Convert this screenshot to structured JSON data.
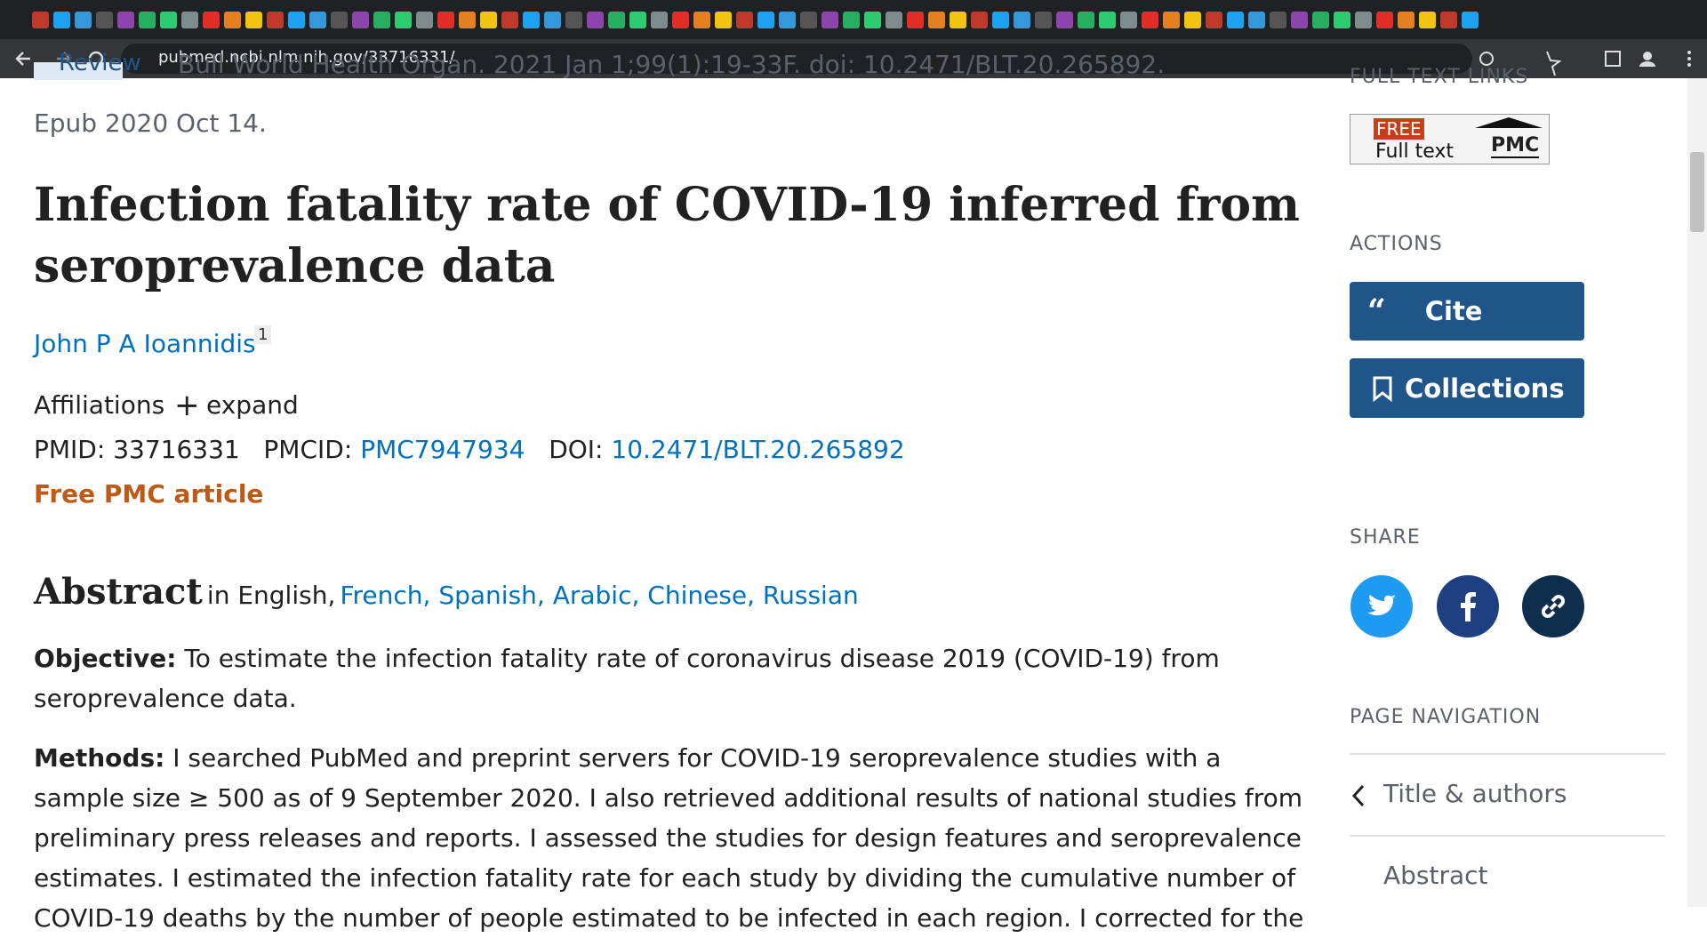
{
  "browser": {
    "url": "pubmed.ncbi.nlm.nih.gov/33716331/"
  },
  "article": {
    "badge": "Review",
    "citation": "Bull World Health Organ. 2021 Jan 1;99(1):19-33F. doi: 10.2471/BLT.20.265892.",
    "epub": "Epub 2020 Oct 14.",
    "title_lines": [
      "Infection fatality rate of COVID-19 inferred from",
      "seroprevalence data"
    ],
    "author": "John P A Ioannidis",
    "author_sup": "1",
    "affiliations": "Affiliations",
    "expand": "expand",
    "ids": {
      "pmid_label": "PMID:",
      "pmid": "33716331",
      "pmcid_label": "PMCID:",
      "pmcid": "PMC7947934",
      "doi_label": "DOI:",
      "doi": "10.2471/BLT.20.265892"
    },
    "free_pmc": "Free PMC article",
    "abstract": {
      "heading": "Abstract",
      "in_english": "in English,",
      "languages": "French, Spanish, Arabic, Chinese, Russian",
      "objective_label": "Objective:",
      "objective_lines": [
        "To estimate the infection fatality rate of coronavirus disease 2019 (COVID-19) from",
        "seroprevalence data."
      ],
      "methods_label": "Methods:",
      "methods_lines": [
        "I searched PubMed and preprint servers for COVID-19 seroprevalence studies with a",
        "sample size ≥ 500 as of 9 September 2020. I also retrieved additional results of national studies from",
        "preliminary press releases and reports. I assessed the studies for design features and seroprevalence",
        "estimates. I estimated the infection fatality rate for each study by dividing the cumulative number of",
        "COVID-19 deaths by the number of people estimated to be infected in each region. I corrected for the"
      ]
    }
  },
  "sidebar": {
    "full_text_links": "FULL TEXT LINKS",
    "free": "FREE",
    "full_text": "Full text",
    "pmc": "PMC",
    "actions": "ACTIONS",
    "cite": "Cite",
    "collections": "Collections",
    "share": "SHARE",
    "page_navigation": "PAGE NAVIGATION",
    "nav": [
      "Title & authors",
      "Abstract"
    ]
  }
}
